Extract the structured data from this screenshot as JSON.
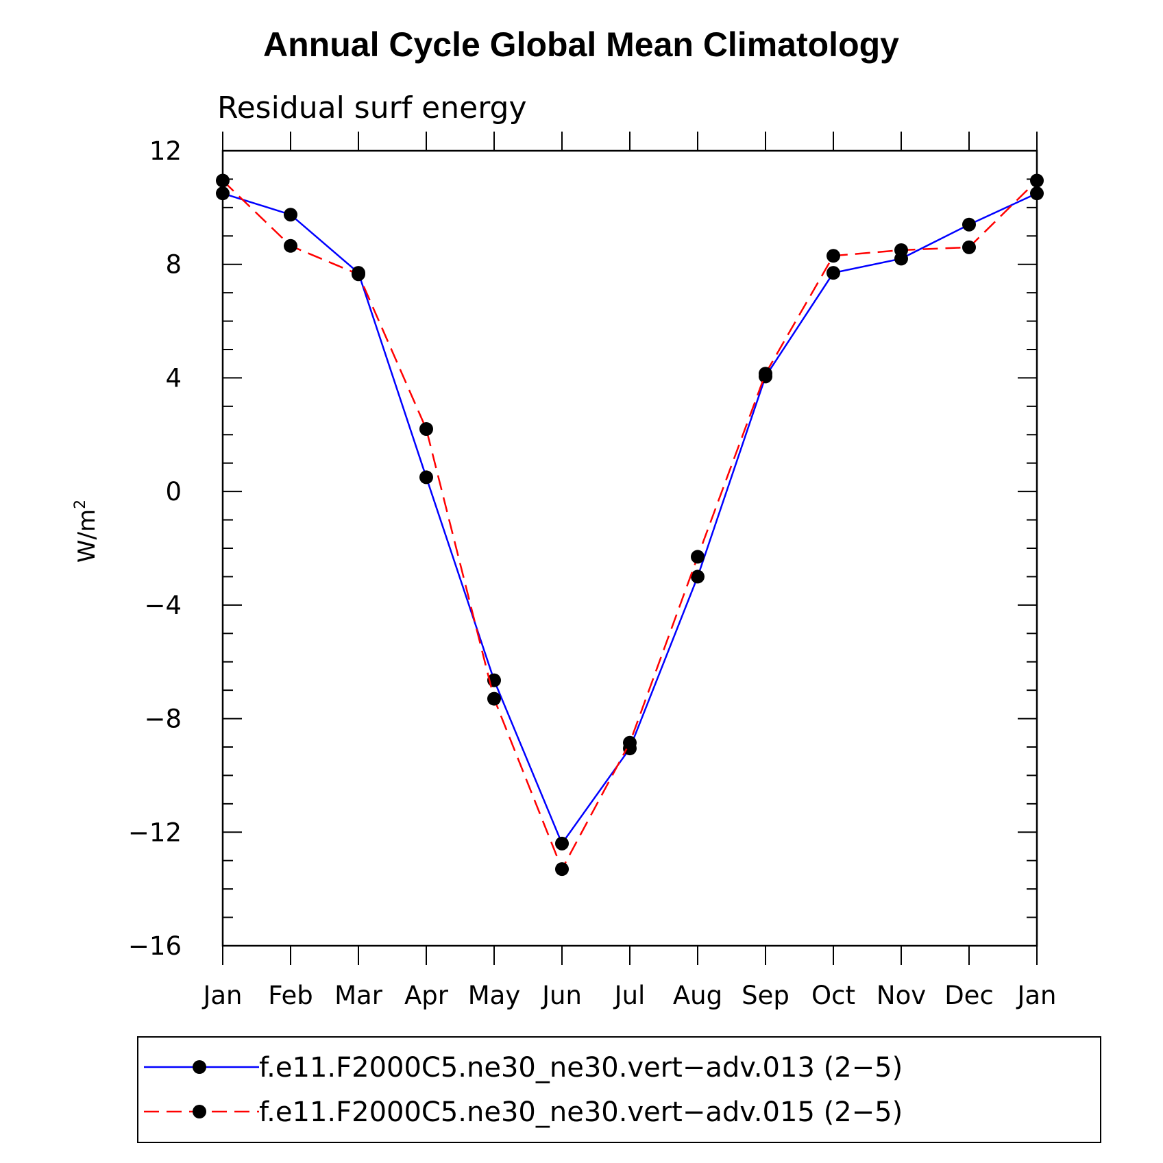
{
  "chart_data": {
    "type": "line",
    "title": "Annual Cycle Global Mean Climatology",
    "subtitle": "Residual surf energy",
    "ylabel": "W/m",
    "ylabel_superscript": "2",
    "xlabel": "",
    "categories": [
      "Jan",
      "Feb",
      "Mar",
      "Apr",
      "May",
      "Jun",
      "Jul",
      "Aug",
      "Sep",
      "Oct",
      "Nov",
      "Dec",
      "Jan"
    ],
    "ylim": [
      -16,
      12
    ],
    "yticks": [
      12,
      8,
      4,
      0,
      -4,
      -8,
      -12,
      -16
    ],
    "series": [
      {
        "name": "f.e11.F2000C5.ne30_ne30.vert-adv.013 (2-5)",
        "color": "#0000ff",
        "dash": "solid",
        "marker": "filled-circle",
        "values": [
          10.5,
          9.75,
          7.7,
          0.5,
          -6.65,
          -12.4,
          -9.05,
          -3.0,
          4.05,
          7.7,
          8.2,
          9.4,
          10.5
        ]
      },
      {
        "name": "f.e11.F2000C5.ne30_ne30.vert-adv.015 (2-5)",
        "color": "#ff0000",
        "dash": "dashed",
        "marker": "filled-circle",
        "values": [
          10.95,
          8.65,
          7.65,
          2.2,
          -7.3,
          -13.3,
          -8.85,
          -2.3,
          4.15,
          8.3,
          8.5,
          8.6,
          10.95
        ]
      }
    ],
    "grid": false,
    "legend_position": "bottom"
  }
}
